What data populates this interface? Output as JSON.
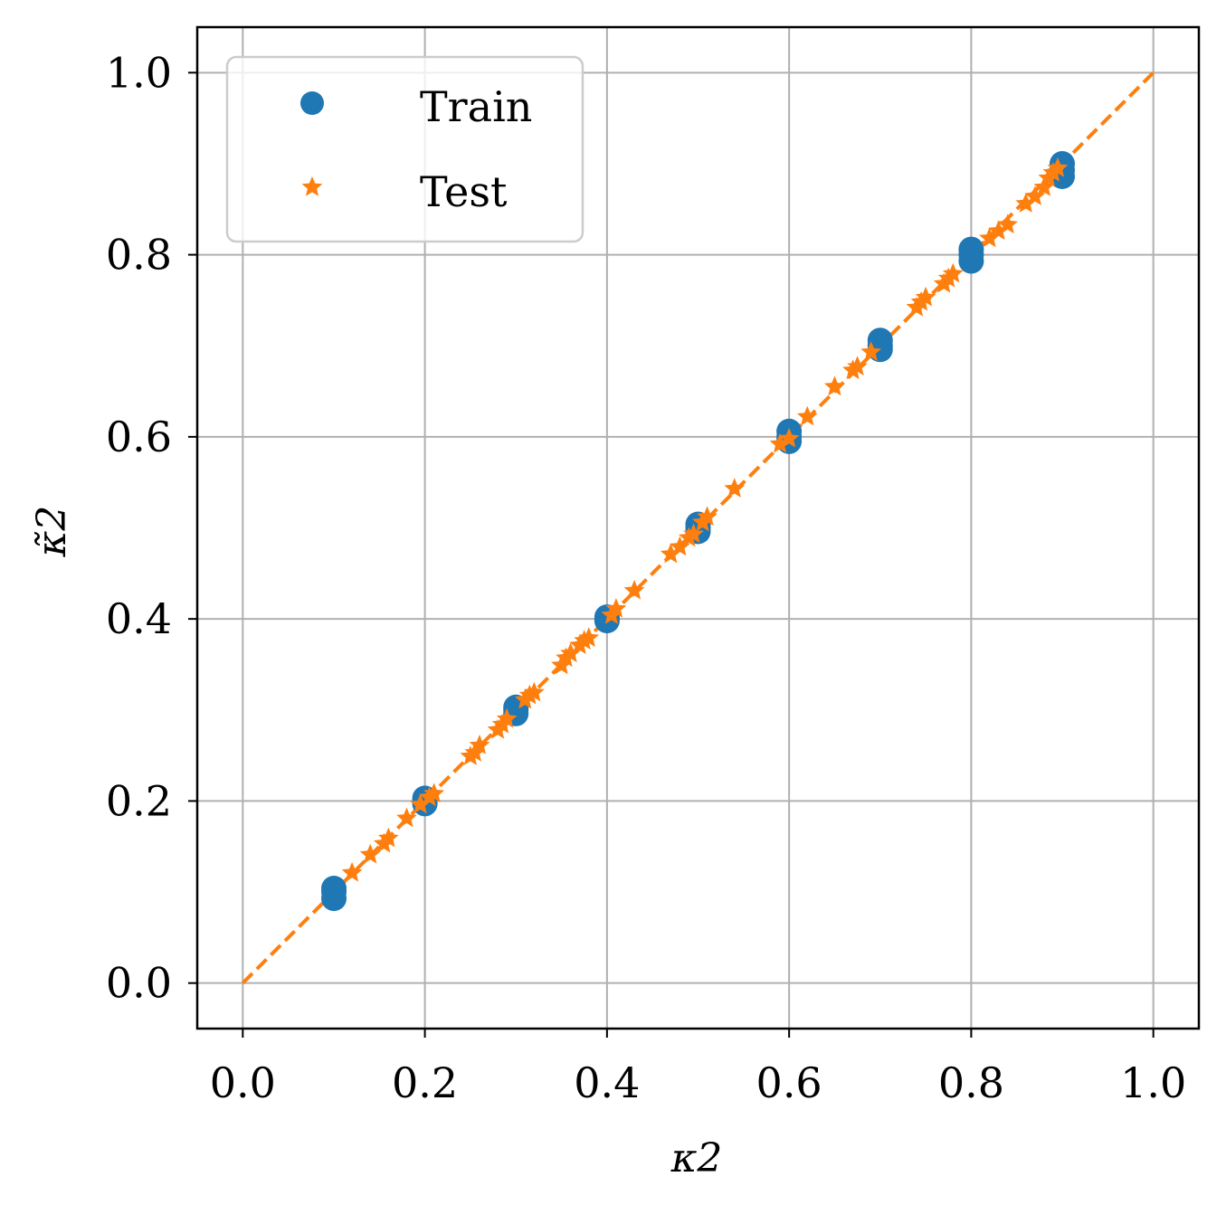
{
  "chart_data": {
    "type": "scatter",
    "xlabel": "κ2",
    "ylabel": "κ̃2",
    "xlim": [
      -0.05,
      1.05
    ],
    "ylim": [
      -0.05,
      1.05
    ],
    "xticks": [
      "0.0",
      "0.2",
      "0.4",
      "0.6",
      "0.8",
      "1.0"
    ],
    "yticks": [
      "0.0",
      "0.2",
      "0.4",
      "0.6",
      "0.8",
      "1.0"
    ],
    "grid": true,
    "legend_position": "top-left",
    "series": [
      {
        "name": "Train",
        "marker": "circle",
        "color": "#1f77b4",
        "points": [
          [
            0.1,
            0.093
          ],
          [
            0.1,
            0.1
          ],
          [
            0.1,
            0.104
          ],
          [
            0.2,
            0.197
          ],
          [
            0.2,
            0.2
          ],
          [
            0.2,
            0.203
          ],
          [
            0.3,
            0.296
          ],
          [
            0.3,
            0.3
          ],
          [
            0.3,
            0.303
          ],
          [
            0.4,
            0.398
          ],
          [
            0.4,
            0.4
          ],
          [
            0.4,
            0.402
          ],
          [
            0.5,
            0.496
          ],
          [
            0.5,
            0.5
          ],
          [
            0.5,
            0.504
          ],
          [
            0.6,
            0.595
          ],
          [
            0.6,
            0.6
          ],
          [
            0.6,
            0.606
          ],
          [
            0.7,
            0.696
          ],
          [
            0.7,
            0.7
          ],
          [
            0.7,
            0.706
          ],
          [
            0.8,
            0.793
          ],
          [
            0.8,
            0.8
          ],
          [
            0.8,
            0.806
          ],
          [
            0.9,
            0.886
          ],
          [
            0.9,
            0.893
          ],
          [
            0.9,
            0.9
          ]
        ]
      },
      {
        "name": "Test",
        "marker": "star",
        "color": "#ff7f0e",
        "points": [
          [
            0.12,
            0.121
          ],
          [
            0.14,
            0.141
          ],
          [
            0.155,
            0.153
          ],
          [
            0.16,
            0.159
          ],
          [
            0.18,
            0.181
          ],
          [
            0.195,
            0.196
          ],
          [
            0.205,
            0.204
          ],
          [
            0.21,
            0.208
          ],
          [
            0.25,
            0.249
          ],
          [
            0.255,
            0.253
          ],
          [
            0.26,
            0.261
          ],
          [
            0.28,
            0.278
          ],
          [
            0.285,
            0.284
          ],
          [
            0.29,
            0.29
          ],
          [
            0.31,
            0.311
          ],
          [
            0.315,
            0.316
          ],
          [
            0.32,
            0.319
          ],
          [
            0.35,
            0.349
          ],
          [
            0.355,
            0.357
          ],
          [
            0.36,
            0.362
          ],
          [
            0.37,
            0.371
          ],
          [
            0.375,
            0.376
          ],
          [
            0.38,
            0.379
          ],
          [
            0.405,
            0.404
          ],
          [
            0.41,
            0.411
          ],
          [
            0.43,
            0.431
          ],
          [
            0.47,
            0.471
          ],
          [
            0.48,
            0.479
          ],
          [
            0.49,
            0.489
          ],
          [
            0.495,
            0.493
          ],
          [
            0.505,
            0.506
          ],
          [
            0.51,
            0.512
          ],
          [
            0.54,
            0.543
          ],
          [
            0.59,
            0.592
          ],
          [
            0.6,
            0.598
          ],
          [
            0.62,
            0.622
          ],
          [
            0.65,
            0.655
          ],
          [
            0.67,
            0.673
          ],
          [
            0.675,
            0.677
          ],
          [
            0.69,
            0.693
          ],
          [
            0.74,
            0.742
          ],
          [
            0.745,
            0.748
          ],
          [
            0.75,
            0.753
          ],
          [
            0.77,
            0.768
          ],
          [
            0.775,
            0.774
          ],
          [
            0.78,
            0.779
          ],
          [
            0.82,
            0.818
          ],
          [
            0.83,
            0.826
          ],
          [
            0.84,
            0.833
          ],
          [
            0.86,
            0.856
          ],
          [
            0.87,
            0.864
          ],
          [
            0.88,
            0.874
          ],
          [
            0.885,
            0.884
          ],
          [
            0.89,
            0.89
          ],
          [
            0.895,
            0.895
          ]
        ]
      },
      {
        "name": "",
        "marker": "dashed-line",
        "color": "#ff7f0e",
        "points": [
          [
            0,
            0
          ],
          [
            1,
            1
          ]
        ]
      }
    ]
  }
}
